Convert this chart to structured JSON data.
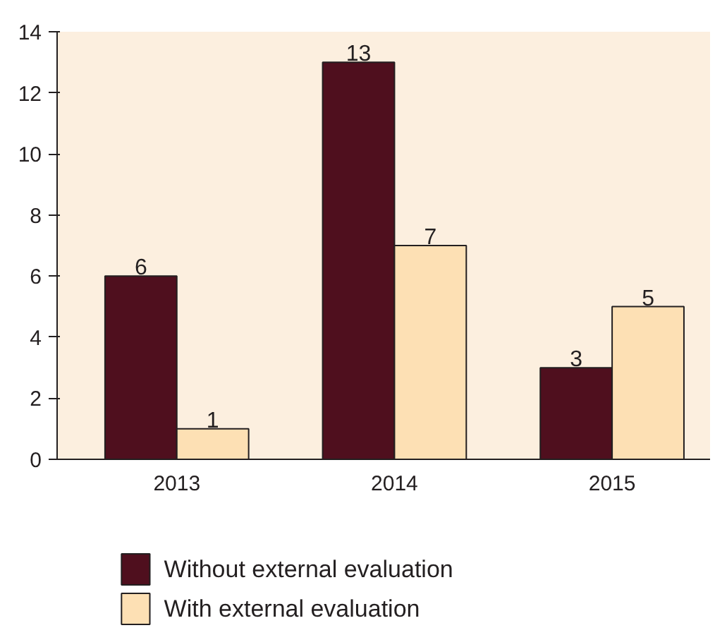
{
  "chart_data": {
    "type": "bar",
    "categories": [
      "2013",
      "2014",
      "2015"
    ],
    "series": [
      {
        "name": "Without external evaluation",
        "color": "#4f0f1e",
        "values": [
          6,
          13,
          3
        ]
      },
      {
        "name": "With external evaluation",
        "color": "#fde0b4",
        "values": [
          1,
          7,
          5
        ]
      }
    ],
    "ylim": [
      0,
      14
    ],
    "yticks": [
      0,
      2,
      4,
      6,
      8,
      10,
      12,
      14
    ],
    "grid": false,
    "legend": "bottom",
    "data_labels": true
  }
}
